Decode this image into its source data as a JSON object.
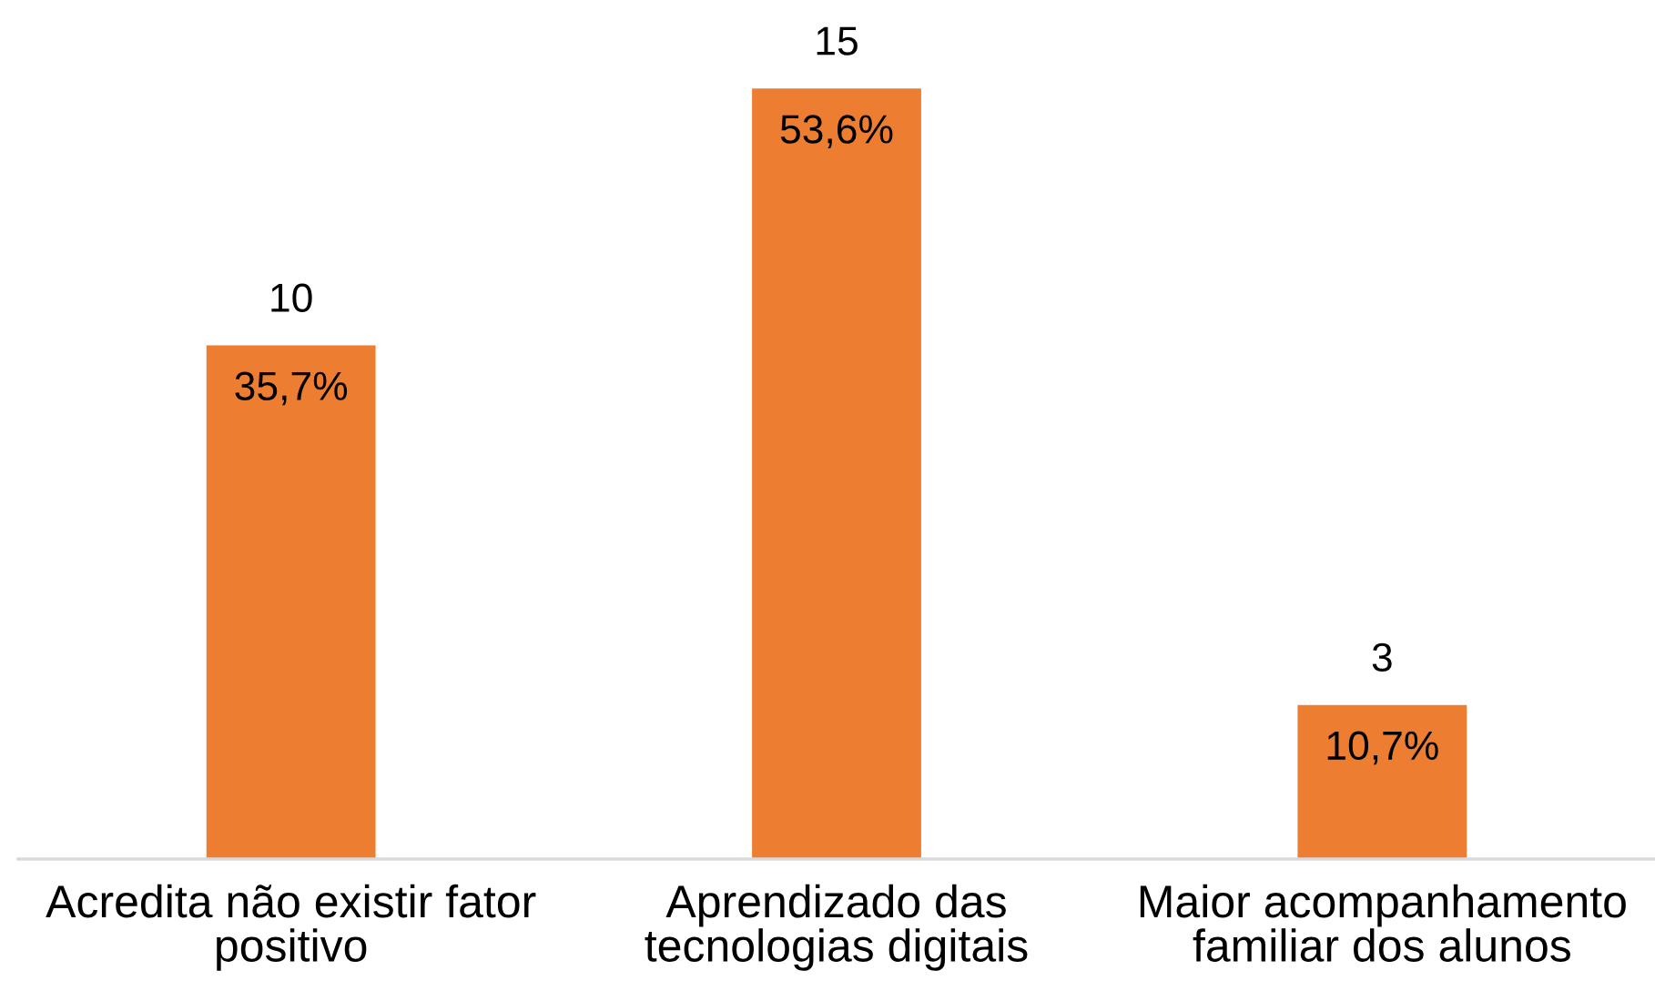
{
  "chart_data": {
    "type": "bar",
    "categories": [
      "Acredita não existir fator\npositivo",
      "Aprendizado das\ntecnologias digitais",
      "Maior acompanhamento\nfamiliar dos alunos"
    ],
    "values": [
      10,
      15,
      3
    ],
    "color": "#ed7d31",
    "data_labels": true,
    "annotations": [
      {
        "text": "35,7%",
        "x": "Acredita não existir fator\npositivo",
        "y": 10
      },
      {
        "text": "53,6%",
        "x": "Aprendizado das\ntecnologias digitais",
        "y": 15
      },
      {
        "text": "10,7%",
        "x": "Maior acompanhamento\nfamiliar dos alunos",
        "y": 3
      }
    ]
  }
}
